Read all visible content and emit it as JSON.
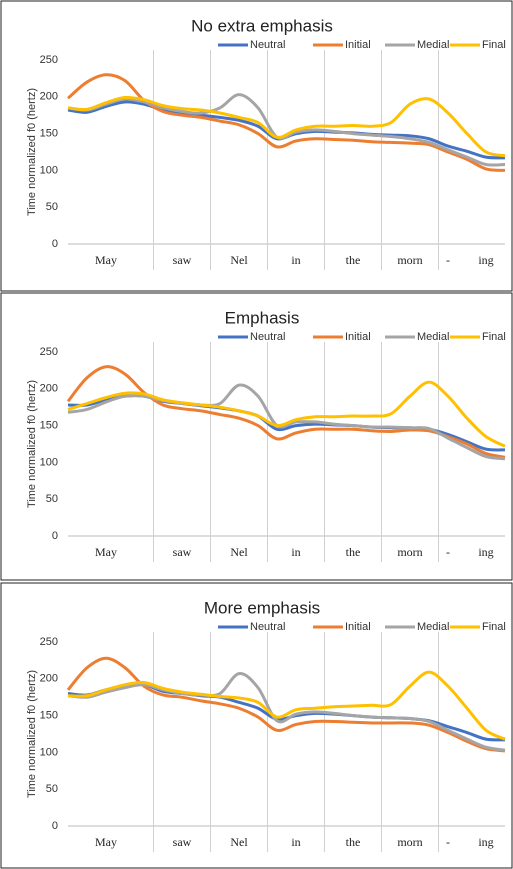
{
  "chart_data": [
    {
      "type": "line",
      "title": "No extra emphasis",
      "y_label": "Time normalized f0 (hertz)",
      "categories": [
        null,
        null,
        "May",
        null,
        null,
        null,
        "saw",
        null,
        null,
        "Nel",
        null,
        null,
        "in",
        null,
        null,
        "the",
        null,
        null,
        "morn",
        null,
        "-",
        null,
        "ing",
        null
      ],
      "ylim": [
        0,
        250
      ],
      "yticks": [
        0,
        50,
        100,
        150,
        200,
        250
      ],
      "grid": false,
      "series": [
        {
          "name": "Neutral",
          "color": "#4472c4",
          "values": [
            182,
            179,
            187,
            193,
            190,
            182,
            178,
            175,
            172,
            168,
            160,
            143,
            150,
            153,
            152,
            151,
            149,
            148,
            147,
            143,
            133,
            126,
            118,
            117
          ]
        },
        {
          "name": "Initial",
          "color": "#ed7d31",
          "values": [
            198,
            220,
            230,
            222,
            195,
            180,
            175,
            172,
            167,
            162,
            150,
            132,
            140,
            143,
            142,
            141,
            139,
            138,
            137,
            135,
            125,
            115,
            102,
            100
          ]
        },
        {
          "name": "Medial",
          "color": "#a5a5a5",
          "values": [
            185,
            182,
            190,
            197,
            193,
            185,
            180,
            178,
            185,
            203,
            185,
            145,
            152,
            155,
            153,
            150,
            148,
            146,
            143,
            138,
            128,
            118,
            108,
            108
          ]
        },
        {
          "name": "Final",
          "color": "#ffc000",
          "values": [
            185,
            183,
            192,
            199,
            196,
            188,
            184,
            182,
            178,
            172,
            165,
            145,
            155,
            160,
            160,
            161,
            160,
            165,
            190,
            197,
            178,
            150,
            125,
            120
          ]
        }
      ]
    },
    {
      "type": "line",
      "title": "Emphasis",
      "y_label": "Time normalized f0 (hertz)",
      "categories": [
        null,
        null,
        "May",
        null,
        null,
        null,
        "saw",
        null,
        null,
        "Nel",
        null,
        null,
        "in",
        null,
        null,
        "the",
        null,
        null,
        "morn",
        null,
        "-",
        null,
        "ing",
        null
      ],
      "ylim": [
        0,
        250
      ],
      "yticks": [
        0,
        50,
        100,
        150,
        200,
        250
      ],
      "grid": false,
      "series": [
        {
          "name": "Neutral",
          "color": "#4472c4",
          "values": [
            178,
            178,
            185,
            190,
            190,
            183,
            180,
            177,
            174,
            170,
            163,
            145,
            150,
            152,
            151,
            150,
            148,
            147,
            147,
            145,
            138,
            128,
            118,
            117
          ]
        },
        {
          "name": "Initial",
          "color": "#ed7d31",
          "values": [
            183,
            215,
            230,
            220,
            195,
            178,
            173,
            170,
            165,
            160,
            150,
            132,
            140,
            145,
            145,
            145,
            143,
            142,
            144,
            143,
            135,
            125,
            112,
            107
          ]
        },
        {
          "name": "Medial",
          "color": "#a5a5a5",
          "values": [
            168,
            172,
            182,
            190,
            190,
            184,
            180,
            178,
            180,
            205,
            190,
            150,
            155,
            155,
            152,
            150,
            148,
            148,
            147,
            146,
            133,
            120,
            108,
            105
          ]
        },
        {
          "name": "Final",
          "color": "#ffc000",
          "values": [
            172,
            180,
            188,
            194,
            193,
            185,
            181,
            178,
            175,
            170,
            163,
            150,
            158,
            162,
            162,
            163,
            163,
            166,
            190,
            209,
            190,
            160,
            135,
            122
          ]
        }
      ]
    },
    {
      "type": "line",
      "title": "More emphasis",
      "y_label": "Time normalized f0 (hertz)",
      "categories": [
        null,
        null,
        "May",
        null,
        null,
        null,
        "saw",
        null,
        null,
        "Nel",
        null,
        null,
        "in",
        null,
        null,
        "the",
        null,
        null,
        "morn",
        null,
        "-",
        null,
        "ing",
        null
      ],
      "ylim": [
        0,
        250
      ],
      "yticks": [
        0,
        50,
        100,
        150,
        200,
        250
      ],
      "grid": false,
      "series": [
        {
          "name": "Neutral",
          "color": "#4472c4",
          "values": [
            180,
            178,
            185,
            190,
            192,
            183,
            180,
            177,
            175,
            168,
            160,
            145,
            150,
            153,
            152,
            150,
            148,
            147,
            146,
            143,
            135,
            127,
            118,
            117
          ]
        },
        {
          "name": "Initial",
          "color": "#ed7d31",
          "values": [
            185,
            215,
            228,
            215,
            190,
            178,
            175,
            170,
            166,
            160,
            148,
            130,
            138,
            142,
            142,
            141,
            140,
            140,
            140,
            137,
            127,
            115,
            105,
            102
          ]
        },
        {
          "name": "Medial",
          "color": "#a5a5a5",
          "values": [
            177,
            175,
            182,
            188,
            192,
            185,
            180,
            178,
            180,
            207,
            188,
            143,
            152,
            155,
            153,
            150,
            148,
            147,
            146,
            142,
            130,
            118,
            107,
            103
          ]
        },
        {
          "name": "Final",
          "color": "#ffc000",
          "values": [
            177,
            177,
            185,
            192,
            195,
            187,
            182,
            179,
            176,
            174,
            168,
            148,
            158,
            160,
            162,
            163,
            164,
            165,
            190,
            209,
            190,
            160,
            130,
            118
          ]
        }
      ]
    }
  ]
}
